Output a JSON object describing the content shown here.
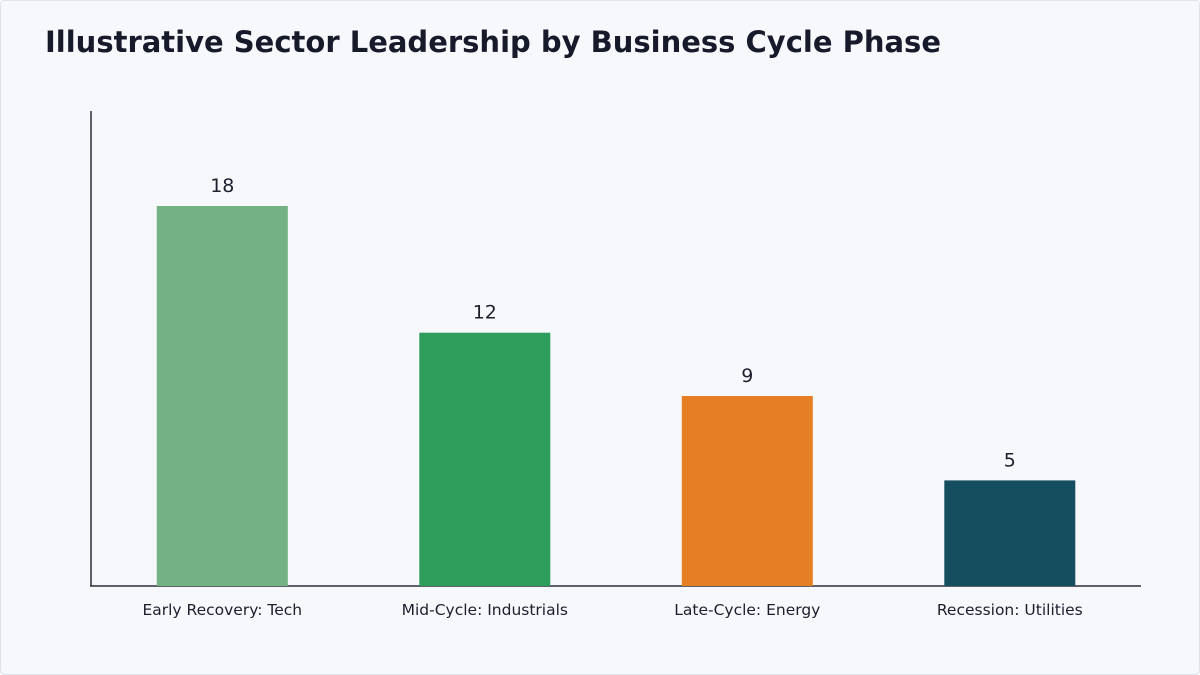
{
  "chart_data": {
    "type": "bar",
    "title": "Illustrative Sector Leadership by Business Cycle Phase",
    "xlabel": "",
    "ylabel": "",
    "categories": [
      "Early Recovery: Tech",
      "Mid-Cycle: Industrials",
      "Late-Cycle: Energy",
      "Recession: Utilities"
    ],
    "values": [
      18,
      12,
      9,
      5
    ],
    "colors": [
      "#72b283",
      "#2f9e5d",
      "#e67f23",
      "#154f5f"
    ],
    "ylim": [
      0,
      22.5
    ],
    "grid": false,
    "legend": "none",
    "data_labels": true
  }
}
